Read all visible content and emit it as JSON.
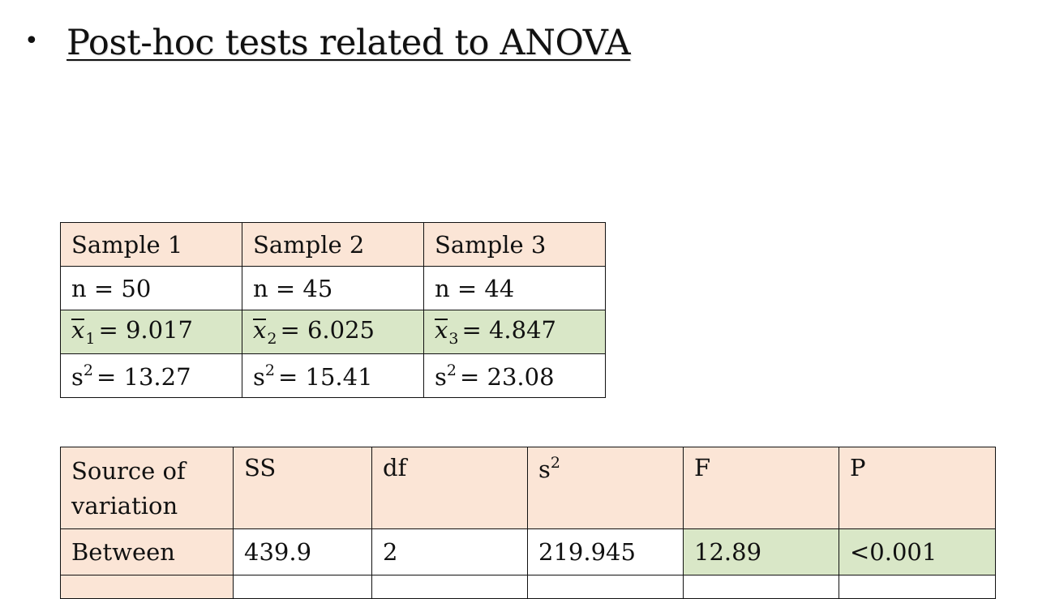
{
  "slide": {
    "bullet": "•",
    "title": "Post-hoc tests related to ANOVA"
  },
  "samples_table": {
    "headers": [
      "Sample 1",
      "Sample 2",
      "Sample 3"
    ],
    "n_values": [
      "n = 50",
      "n = 45",
      "n = 44"
    ],
    "mean_symbol": "x",
    "mean_subscripts": [
      "1",
      "2",
      "3"
    ],
    "mean_values": [
      "= 9.017",
      "= 6.025",
      "= 4.847"
    ],
    "variance_symbol": "s",
    "variance_exponent": "2",
    "variance_values": [
      "= 13.27",
      "= 15.41",
      "= 23.08"
    ]
  },
  "anova_table": {
    "headers": [
      "Source of variation",
      "SS",
      "df",
      "s",
      "F",
      "P"
    ],
    "header_s_exponent": "2",
    "rows": [
      [
        "Between",
        "439.9",
        "2",
        "219.945",
        "12.89",
        "<0.001"
      ]
    ]
  },
  "colors": {
    "header_fill": "#fbe5d6",
    "highlight_fill": "#d9e7c7",
    "border": "#111111"
  }
}
